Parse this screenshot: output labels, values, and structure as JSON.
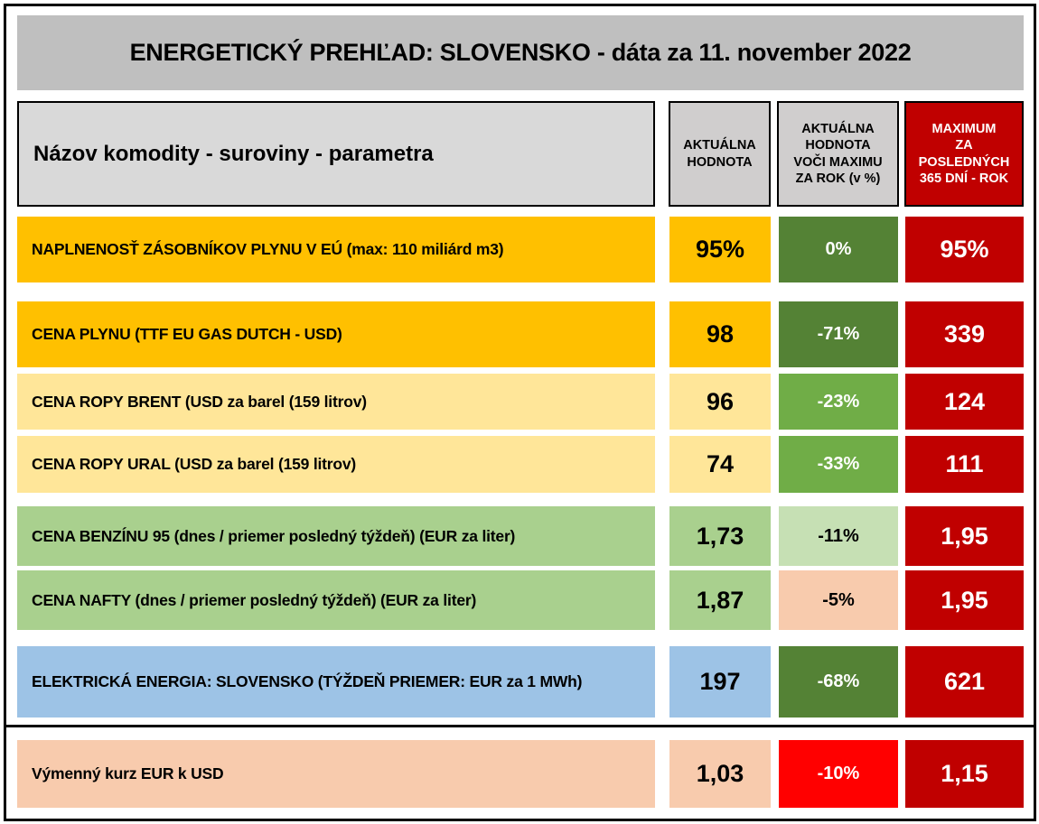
{
  "title": "ENERGETICKÝ PREHĽAD: SLOVENSKO - dáta za 11. november 2022",
  "header": {
    "label": "Názov komodity - suroviny - parametra",
    "current": [
      "AKTUÁLNA",
      "HODNOTA"
    ],
    "vs_max": [
      "AKTUÁLNA",
      "HODNOTA",
      "VOČI MAXIMU",
      "ZA ROK (v %)"
    ],
    "max": [
      "MAXIMUM",
      "ZA",
      "POSLEDNÝCH",
      "365 DNÍ - ROK"
    ]
  },
  "rows": [
    {
      "label": "NAPLNENOSŤ ZÁSOBNÍKOV PLYNU V EÚ (max: 110 miliárd m3)",
      "current": "95%",
      "vs_max": "0%",
      "max": "95%",
      "label_color": "#ffc000",
      "current_color": "#ffc000",
      "vs_max_color": "#548235",
      "vs_max_text": "#ffffff"
    },
    {
      "label": "CENA PLYNU (TTF EU GAS DUTCH - USD)",
      "current": "98",
      "vs_max": "-71%",
      "max": "339",
      "label_color": "#ffc000",
      "current_color": "#ffc000",
      "vs_max_color": "#548235",
      "vs_max_text": "#ffffff"
    },
    {
      "label": "CENA ROPY BRENT (USD za barel (159 litrov)",
      "current": "96",
      "vs_max": "-23%",
      "max": "124",
      "label_color": "#ffe699",
      "current_color": "#ffe699",
      "vs_max_color": "#70ad47",
      "vs_max_text": "#ffffff"
    },
    {
      "label": "CENA ROPY URAL (USD za barel (159 litrov)",
      "current": "74",
      "vs_max": "-33%",
      "max": "111",
      "label_color": "#ffe699",
      "current_color": "#ffe699",
      "vs_max_color": "#70ad47",
      "vs_max_text": "#ffffff"
    },
    {
      "label": "CENA BENZÍNU 95 (dnes / priemer posledný týždeň) (EUR za liter)",
      "current": "1,73",
      "vs_max": "-11%",
      "max": "1,95",
      "label_color": "#a9d08e",
      "current_color": "#a9d08e",
      "vs_max_color": "#c6e0b4",
      "vs_max_text": "#000000"
    },
    {
      "label": "CENA NAFTY (dnes / priemer posledný týždeň) (EUR za liter)",
      "current": "1,87",
      "vs_max": "-5%",
      "max": "1,95",
      "label_color": "#a9d08e",
      "current_color": "#a9d08e",
      "vs_max_color": "#f8cbad",
      "vs_max_text": "#000000"
    },
    {
      "label": "ELEKTRICKÁ ENERGIA: SLOVENSKO (TÝŽDEŇ PRIEMER: EUR za 1 MWh)",
      "current": "197",
      "vs_max": "-68%",
      "max": "621",
      "label_color": "#9dc3e6",
      "current_color": "#9dc3e6",
      "vs_max_color": "#548235",
      "vs_max_text": "#ffffff"
    },
    {
      "label": "Výmenný kurz EUR k USD",
      "current": "1,03",
      "vs_max": "-10%",
      "max": "1,15",
      "label_color": "#f8cbad",
      "current_color": "#f8cbad",
      "vs_max_color": "#ff0000",
      "vs_max_text": "#ffffff"
    }
  ],
  "colors": {
    "max_column": "#c00000",
    "title_bg": "#bfbfbf",
    "header_bg": "#d0cece"
  }
}
